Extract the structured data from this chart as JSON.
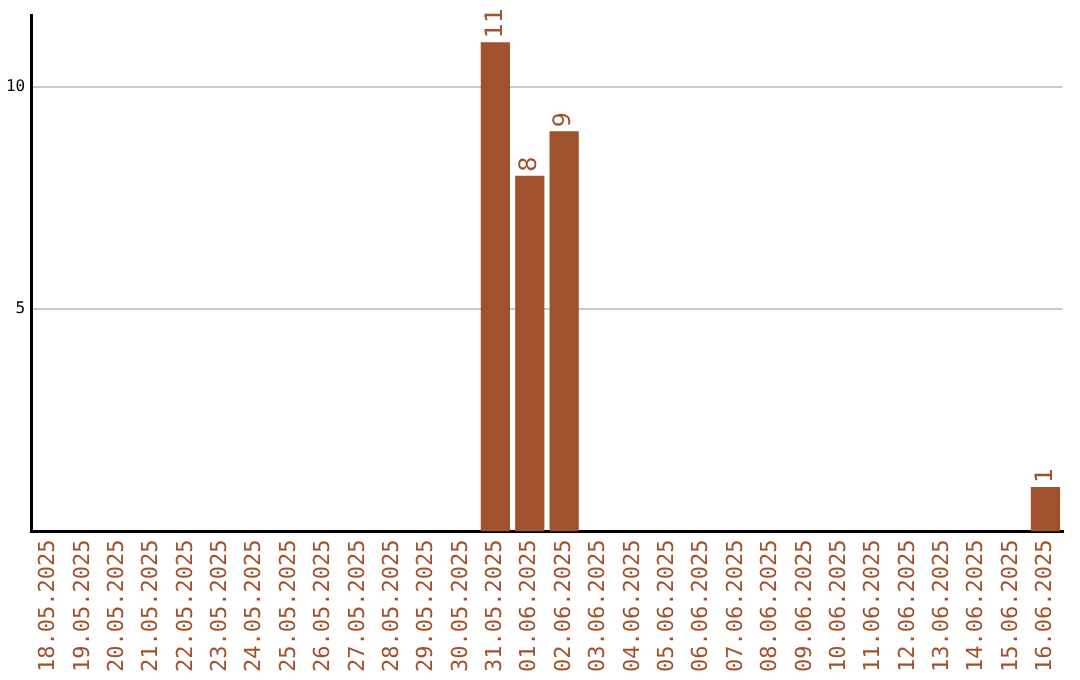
{
  "chart_data": {
    "type": "bar",
    "categories": [
      "18.05.2025",
      "19.05.2025",
      "20.05.2025",
      "21.05.2025",
      "22.05.2025",
      "23.05.2025",
      "24.05.2025",
      "25.05.2025",
      "26.05.2025",
      "27.05.2025",
      "28.05.2025",
      "29.05.2025",
      "30.05.2025",
      "31.05.2025",
      "01.06.2025",
      "02.06.2025",
      "03.06.2025",
      "04.06.2025",
      "05.06.2025",
      "06.06.2025",
      "07.06.2025",
      "08.06.2025",
      "09.06.2025",
      "10.06.2025",
      "11.06.2025",
      "12.06.2025",
      "13.06.2025",
      "14.06.2025",
      "15.06.2025",
      "16.06.2025"
    ],
    "values": [
      0,
      0,
      0,
      0,
      0,
      0,
      0,
      0,
      0,
      0,
      0,
      0,
      0,
      11,
      8,
      9,
      0,
      0,
      0,
      0,
      0,
      0,
      0,
      0,
      0,
      0,
      0,
      0,
      0,
      1
    ],
    "value_labels": [
      null,
      null,
      null,
      null,
      null,
      null,
      null,
      null,
      null,
      null,
      null,
      null,
      null,
      "11",
      "8",
      "9",
      null,
      null,
      null,
      null,
      null,
      null,
      null,
      null,
      null,
      null,
      null,
      null,
      null,
      "1"
    ],
    "color": "#a0522d",
    "ylim": [
      0,
      11.6
    ],
    "yticks": [
      5,
      10
    ],
    "grid": "y",
    "legend": false
  }
}
